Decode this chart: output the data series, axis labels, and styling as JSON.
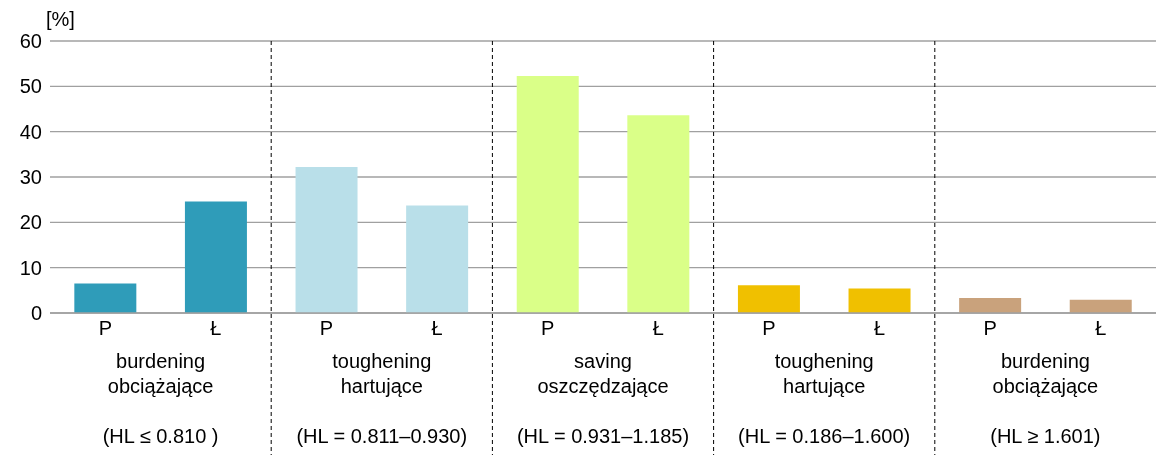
{
  "chart_data": {
    "type": "bar",
    "ylabel": "[%]",
    "categories": [
      "P",
      "Ł",
      "P",
      "Ł",
      "P",
      "Ł",
      "P",
      "Ł",
      "P",
      "Ł"
    ],
    "values": [
      6.5,
      24.6,
      32.2,
      23.7,
      52.3,
      43.6,
      6.1,
      5.4,
      3.3,
      2.9
    ],
    "colors": [
      "#2f9cb9",
      "#2f9cb9",
      "#b9dfe9",
      "#b9dfe9",
      "#daff88",
      "#daff88",
      "#f0c000",
      "#f0c000",
      "#c9a27c",
      "#c9a27c"
    ],
    "ylim": [
      0,
      60
    ],
    "yticks": [
      0,
      10,
      20,
      30,
      40,
      50,
      60
    ],
    "grid": "y",
    "annotations": [
      "burdening\nobciążające\n\n(HL ≤ 0.810 )",
      "toughening\nhartujące\n\n(HL = 0.811–0.930)",
      "saving\noszczędzające\n\n(HL = 0.931–1.185)",
      "toughening\nhartujące\n\n(HL = 0.186–1.600)",
      "burdening\nobciążające\n\n(HL ≥ 1.601)"
    ]
  }
}
